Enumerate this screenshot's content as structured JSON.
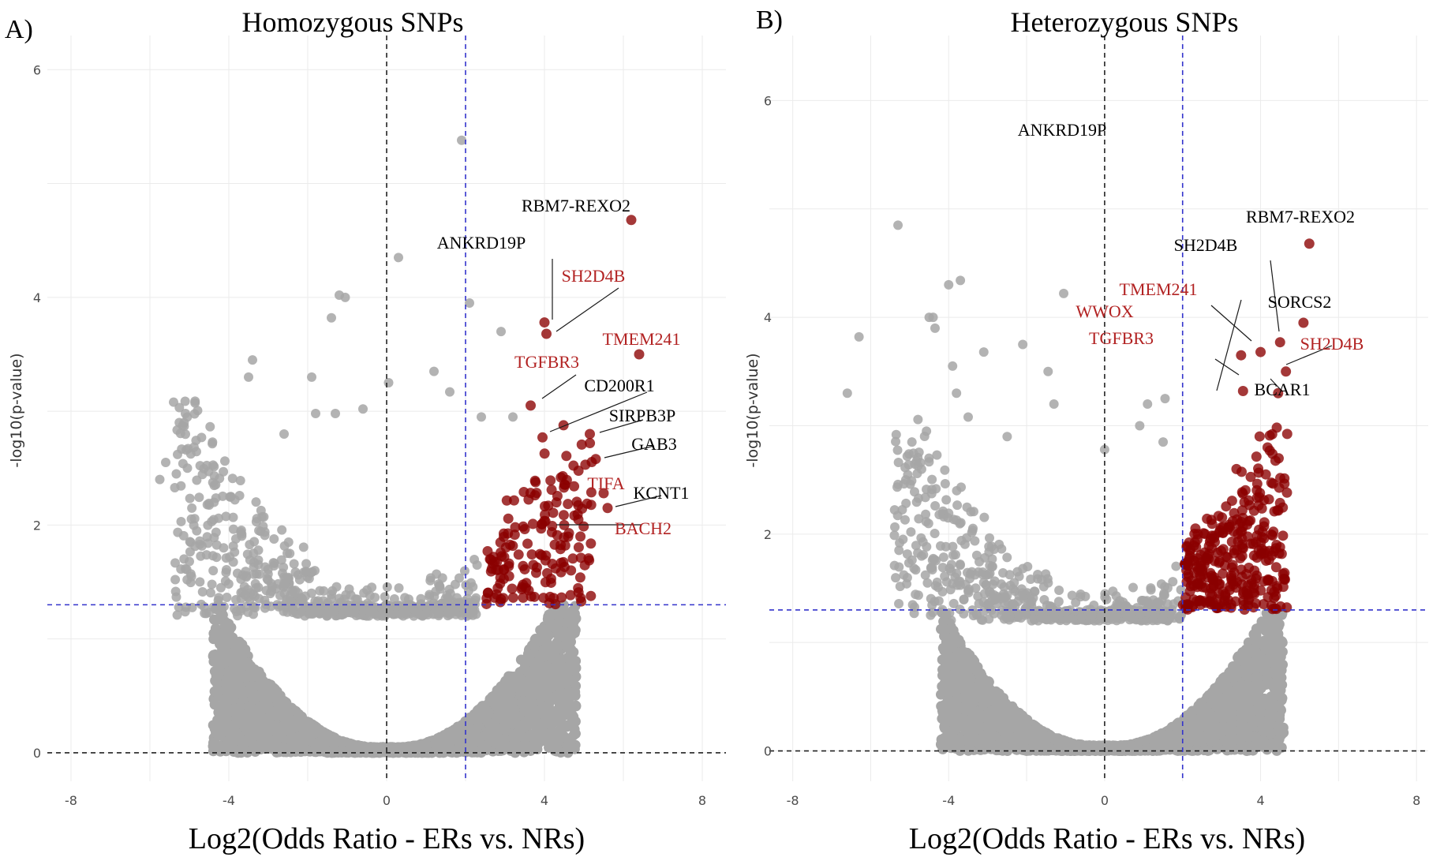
{
  "colors": {
    "background": "#ffffff",
    "grey_points": "#a6a6a6",
    "significant_points": "#8b0000",
    "threshold_line": "#3333cc",
    "zero_line": "#222222",
    "highlight_label": "#b22222",
    "normal_label": "#000000"
  },
  "chart_data": [
    {
      "type": "scatter",
      "panel_letter": "A)",
      "title": "Homozygous SNPs",
      "xlabel": "Log2(Odds Ratio - ERs vs. NRs)",
      "ylabel": "-log10(p-value)",
      "xlim": [
        -8.6,
        8.6
      ],
      "ylim": [
        -0.25,
        6.3
      ],
      "xticks": [
        "-8",
        "-4",
        "0",
        "4",
        "8"
      ],
      "xtick_values": [
        -8,
        -4,
        0,
        4,
        8
      ],
      "yticks": [
        "0",
        "2",
        "4",
        "6"
      ],
      "ytick_values": [
        0,
        2,
        4,
        6
      ],
      "vertical_thresholds": {
        "black_dashed_x": 0,
        "blue_dashed_x": 2
      },
      "horizontal_thresholds": {
        "black_dashed_y": 0,
        "blue_dashed_y": 1.3
      },
      "labeled_points": [
        {
          "gene": "RBM7-REXO2",
          "x": 6.2,
          "y": 4.68,
          "highlight": false
        },
        {
          "gene": "ANKRD19P",
          "x": 4.0,
          "y": 3.78,
          "highlight": false
        },
        {
          "gene": "SH2D4B",
          "x": 4.05,
          "y": 3.68,
          "highlight": true
        },
        {
          "gene": "TMEM241",
          "x": 6.4,
          "y": 3.5,
          "highlight": true
        },
        {
          "gene": "TGFBR3",
          "x": 3.65,
          "y": 3.05,
          "highlight": true
        },
        {
          "gene": "CD200R1",
          "x": 3.95,
          "y": 2.77,
          "highlight": false
        },
        {
          "gene": "SIRPB3P",
          "x": 5.15,
          "y": 2.8,
          "highlight": false
        },
        {
          "gene": "GAB3",
          "x": 5.3,
          "y": 2.58,
          "highlight": false
        },
        {
          "gene": "TIFA",
          "x": 5.5,
          "y": 2.28,
          "highlight": true
        },
        {
          "gene": "KCNT1",
          "x": 5.6,
          "y": 2.15,
          "highlight": false
        },
        {
          "gene": "BACH2",
          "x": 4.5,
          "y": 2.0,
          "highlight": true
        }
      ],
      "outlier_points": [
        {
          "x": 1.9,
          "y": 5.38
        },
        {
          "x": 0.3,
          "y": 4.35
        },
        {
          "x": -1.2,
          "y": 4.02
        },
        {
          "x": -1.05,
          "y": 4.0
        },
        {
          "x": -1.4,
          "y": 3.82
        },
        {
          "x": 2.1,
          "y": 3.95
        },
        {
          "x": 2.9,
          "y": 3.7
        },
        {
          "x": -3.4,
          "y": 3.45
        },
        {
          "x": -3.5,
          "y": 3.3
        },
        {
          "x": -1.9,
          "y": 3.3
        },
        {
          "x": 0.05,
          "y": 3.25
        },
        {
          "x": 1.2,
          "y": 3.35
        },
        {
          "x": 1.6,
          "y": 3.17
        },
        {
          "x": -5.4,
          "y": 3.08
        },
        {
          "x": -5.1,
          "y": 2.98
        },
        {
          "x": -1.8,
          "y": 2.98
        },
        {
          "x": -1.3,
          "y": 2.98
        },
        {
          "x": 3.2,
          "y": 2.95
        },
        {
          "x": -0.6,
          "y": 3.02
        },
        {
          "x": -5.6,
          "y": 2.55
        },
        {
          "x": -5.3,
          "y": 2.62
        },
        {
          "x": -5.05,
          "y": 2.5
        },
        {
          "x": -5.75,
          "y": 2.4
        },
        {
          "x": -2.6,
          "y": 2.8
        },
        {
          "x": 2.4,
          "y": 2.95
        },
        {
          "x": -5.0,
          "y": 1.68
        }
      ],
      "significant_summary": {
        "x_range": [
          2.5,
          5.2
        ],
        "y_range": [
          1.3,
          2.9
        ],
        "approx_count": 160
      }
    },
    {
      "type": "scatter",
      "panel_letter": "B)",
      "title": "Heterozygous SNPs",
      "xlabel": "Log2(Odds Ratio - ERs vs. NRs)",
      "ylabel": "-log10(p-value)",
      "xlim": [
        -8.6,
        8.3
      ],
      "ylim": [
        -0.28,
        6.6
      ],
      "xticks": [
        "-8",
        "-4",
        "0",
        "4",
        "8"
      ],
      "xtick_values": [
        -8,
        -4,
        0,
        4,
        8
      ],
      "yticks": [
        "0",
        "2",
        "4",
        "6"
      ],
      "ytick_values": [
        0,
        2,
        4,
        6
      ],
      "vertical_thresholds": {
        "black_dashed_x": 0,
        "blue_dashed_x": 2
      },
      "horizontal_thresholds": {
        "black_dashed_y": 0,
        "blue_dashed_y": 1.3
      },
      "labeled_points": [
        {
          "gene": "ANKRD19P",
          "x": 0.0,
          "y": 5.6,
          "highlight": false,
          "text_only": true
        },
        {
          "gene": "RBM7-REXO2",
          "x": 5.25,
          "y": 4.68,
          "highlight": false
        },
        {
          "gene": "SH2D4B",
          "x": 4.5,
          "y": 3.77,
          "highlight": false
        },
        {
          "gene": "SORCS2",
          "x": 5.1,
          "y": 3.95,
          "highlight": false
        },
        {
          "gene": "TMEM241",
          "x": 4.0,
          "y": 3.68,
          "highlight": true
        },
        {
          "gene": "WWOX",
          "x": 3.5,
          "y": 3.65,
          "highlight": true
        },
        {
          "gene": "TGFBR3",
          "x": 3.55,
          "y": 3.32,
          "highlight": true
        },
        {
          "gene": "SH2D4B",
          "x": 4.65,
          "y": 3.5,
          "highlight": true
        },
        {
          "gene": "BCAR1",
          "x": 4.45,
          "y": 3.3,
          "highlight": false
        }
      ],
      "outlier_points": [
        {
          "x": -5.3,
          "y": 4.85
        },
        {
          "x": -4.0,
          "y": 4.3
        },
        {
          "x": -3.7,
          "y": 4.34
        },
        {
          "x": -1.05,
          "y": 4.22
        },
        {
          "x": -4.5,
          "y": 4.0
        },
        {
          "x": -4.4,
          "y": 4.0
        },
        {
          "x": -4.35,
          "y": 3.9
        },
        {
          "x": -6.3,
          "y": 3.82
        },
        {
          "x": -3.1,
          "y": 3.68
        },
        {
          "x": -2.1,
          "y": 3.75
        },
        {
          "x": -3.9,
          "y": 3.55
        },
        {
          "x": -6.6,
          "y": 3.3
        },
        {
          "x": -3.8,
          "y": 3.3
        },
        {
          "x": -3.5,
          "y": 3.08
        },
        {
          "x": -1.45,
          "y": 3.5
        },
        {
          "x": 1.1,
          "y": 3.2
        },
        {
          "x": 1.55,
          "y": 3.25
        },
        {
          "x": 0.9,
          "y": 3.0
        },
        {
          "x": -1.3,
          "y": 3.2
        },
        {
          "x": -5.1,
          "y": 2.5
        },
        {
          "x": -2.5,
          "y": 2.9
        },
        {
          "x": 0.0,
          "y": 2.78
        },
        {
          "x": 1.5,
          "y": 2.85
        },
        {
          "x": -4.1,
          "y": 1.08
        }
      ],
      "significant_summary": {
        "x_range": [
          2.0,
          4.7
        ],
        "y_range": [
          1.3,
          3.0
        ],
        "approx_count": 320
      }
    }
  ]
}
